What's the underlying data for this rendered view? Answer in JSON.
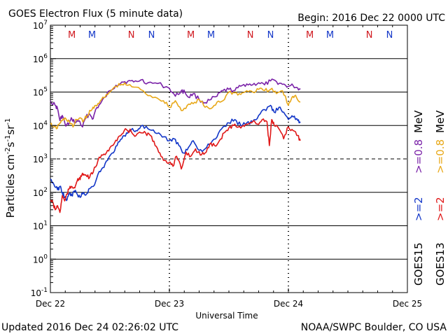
{
  "header": {
    "title": "GOES Electron Flux (5 minute data)",
    "begin": "Begin: 2016 Dec 22 0000 UTC"
  },
  "footer": {
    "updated": "Updated 2016 Dec 24 02:26:02 UTC",
    "credit": "NOAA/SWPC Boulder, CO USA"
  },
  "chart_data": {
    "type": "line",
    "title": "GOES Electron Flux (5 minute data)",
    "xlabel": "Universal Time",
    "ylabel": "Particles cm-2s-1sr-1",
    "ylabel_parts": {
      "base": "Particles cm",
      "e1": "-2",
      "m1": "s",
      "e2": "-1",
      "m2": "sr",
      "e3": "-1"
    },
    "yscale": "log",
    "ylim_exp": [
      -1,
      7
    ],
    "y_ticks": [
      {
        "exp": -1,
        "base": "10",
        "sup": "-1"
      },
      {
        "exp": 0,
        "base": "10",
        "sup": "0"
      },
      {
        "exp": 1,
        "base": "10",
        "sup": "1"
      },
      {
        "exp": 2,
        "base": "10",
        "sup": "2"
      },
      {
        "exp": 3,
        "base": "10",
        "sup": "3"
      },
      {
        "exp": 4,
        "base": "10",
        "sup": "4"
      },
      {
        "exp": 5,
        "base": "10",
        "sup": "5"
      },
      {
        "exp": 6,
        "base": "10",
        "sup": "6"
      },
      {
        "exp": 7,
        "base": "10",
        "sup": "7"
      }
    ],
    "dashed_threshold_exp": 3,
    "xlim_days": [
      0,
      3
    ],
    "x_ticks": [
      {
        "day": 0,
        "label": "Dec 22"
      },
      {
        "day": 1,
        "label": "Dec 23"
      },
      {
        "day": 2,
        "label": "Dec 24"
      },
      {
        "day": 3,
        "label": "Dec 25"
      }
    ],
    "markers": [
      {
        "day": 0.18,
        "label": "M",
        "color": "#d0181e"
      },
      {
        "day": 0.35,
        "label": "M",
        "color": "#1236c8"
      },
      {
        "day": 0.68,
        "label": "N",
        "color": "#d0181e"
      },
      {
        "day": 0.85,
        "label": "N",
        "color": "#1236c8"
      },
      {
        "day": 1.18,
        "label": "M",
        "color": "#d0181e"
      },
      {
        "day": 1.35,
        "label": "M",
        "color": "#1236c8"
      },
      {
        "day": 1.68,
        "label": "N",
        "color": "#d0181e"
      },
      {
        "day": 1.85,
        "label": "N",
        "color": "#1236c8"
      },
      {
        "day": 2.18,
        "label": "M",
        "color": "#d0181e"
      },
      {
        "day": 2.35,
        "label": "M",
        "color": "#1236c8"
      },
      {
        "day": 2.68,
        "label": "N",
        "color": "#d0181e"
      },
      {
        "day": 2.85,
        "label": "N",
        "color": "#1236c8"
      }
    ],
    "legend": {
      "goes15": "GOES15",
      "goes13": "GOES13",
      "ge2_goes15": ">=2",
      "ge2_goes13": ">=2",
      "ge08_goes15": ">=0.8",
      "ge08_goes13": ">=0.8",
      "mev": "MeV"
    },
    "series": [
      {
        "name": "GOES15 >=0.8 MeV",
        "color": "#7a22a8",
        "x": [
          0,
          0.04,
          0.06,
          0.08,
          0.1,
          0.13,
          0.16,
          0.18,
          0.21,
          0.24,
          0.27,
          0.3,
          0.33,
          0.36,
          0.38,
          0.42,
          0.46,
          0.5,
          0.55,
          0.6,
          0.65,
          0.7,
          0.76,
          0.82,
          0.9,
          1.0,
          1.05,
          1.1,
          1.13,
          1.16,
          1.2,
          1.25,
          1.3,
          1.35,
          1.4,
          1.45,
          1.5,
          1.55,
          1.6,
          1.65,
          1.7,
          1.75,
          1.8,
          1.85,
          1.9,
          1.95,
          2.0,
          2.04,
          2.08,
          2.1
        ],
        "y": [
          55000,
          40000,
          32000,
          14000,
          20000,
          9500,
          12000,
          16000,
          12000,
          14000,
          9000,
          18000,
          22000,
          16000,
          30000,
          45000,
          70000,
          110000,
          160000,
          200000,
          210000,
          200000,
          230000,
          190000,
          180000,
          130000,
          75000,
          110000,
          100000,
          70000,
          90000,
          60000,
          48000,
          60000,
          75000,
          110000,
          120000,
          110000,
          150000,
          175000,
          165000,
          190000,
          165000,
          215000,
          205000,
          170000,
          150000,
          155000,
          130000,
          120000
        ]
      },
      {
        "name": "GOES13 >=0.8 MeV",
        "color": "#e8a818",
        "x": [
          0,
          0.03,
          0.05,
          0.08,
          0.1,
          0.13,
          0.16,
          0.19,
          0.22,
          0.25,
          0.28,
          0.31,
          0.35,
          0.38,
          0.42,
          0.46,
          0.5,
          0.55,
          0.6,
          0.65,
          0.72,
          0.8,
          0.88,
          0.95,
          1.0,
          1.05,
          1.1,
          1.15,
          1.2,
          1.25,
          1.3,
          1.35,
          1.4,
          1.45,
          1.5,
          1.55,
          1.6,
          1.65,
          1.7,
          1.75,
          1.8,
          1.85,
          1.9,
          1.95,
          2.0,
          2.03,
          2.06,
          2.1
        ],
        "y": [
          11000,
          9000,
          8000,
          12000,
          14000,
          16000,
          13000,
          9000,
          15000,
          17000,
          14000,
          20000,
          30000,
          40000,
          55000,
          70000,
          100000,
          150000,
          170000,
          160000,
          140000,
          90000,
          70000,
          55000,
          35000,
          55000,
          28000,
          40000,
          45000,
          60000,
          35000,
          32000,
          50000,
          55000,
          100000,
          95000,
          85000,
          110000,
          100000,
          120000,
          110000,
          120000,
          90000,
          110000,
          40000,
          70000,
          80000,
          50000
        ]
      },
      {
        "name": "GOES15 >=2 MeV",
        "color": "#1236c8",
        "x": [
          0,
          0.03,
          0.06,
          0.08,
          0.1,
          0.12,
          0.14,
          0.16,
          0.18,
          0.2,
          0.22,
          0.25,
          0.28,
          0.3,
          0.33,
          0.36,
          0.4,
          0.44,
          0.48,
          0.52,
          0.56,
          0.6,
          0.64,
          0.68,
          0.72,
          0.76,
          0.82,
          0.88,
          0.94,
          1.0,
          1.04,
          1.08,
          1.12,
          1.16,
          1.2,
          1.25,
          1.3,
          1.35,
          1.4,
          1.45,
          1.5,
          1.55,
          1.6,
          1.65,
          1.7,
          1.75,
          1.8,
          1.85,
          1.88,
          1.92,
          1.96,
          2.0,
          2.04,
          2.08,
          2.1
        ],
        "y": [
          250,
          170,
          120,
          150,
          100,
          70,
          60,
          90,
          80,
          110,
          95,
          70,
          100,
          85,
          130,
          150,
          350,
          550,
          900,
          1500,
          2500,
          4000,
          6000,
          7500,
          7000,
          9500,
          8000,
          6000,
          4500,
          3500,
          4000,
          2500,
          1500,
          2200,
          3500,
          1800,
          2000,
          3000,
          4500,
          9000,
          12000,
          15000,
          10000,
          12000,
          13000,
          20000,
          30000,
          40000,
          25000,
          35000,
          25000,
          15000,
          18000,
          14000,
          12000
        ]
      },
      {
        "name": "GOES13 >=2 MeV",
        "color": "#e01818",
        "x": [
          0,
          0.02,
          0.04,
          0.06,
          0.08,
          0.1,
          0.12,
          0.14,
          0.16,
          0.18,
          0.2,
          0.22,
          0.24,
          0.26,
          0.28,
          0.3,
          0.33,
          0.36,
          0.4,
          0.44,
          0.48,
          0.52,
          0.56,
          0.6,
          0.64,
          0.68,
          0.72,
          0.76,
          0.8,
          0.84,
          0.88,
          0.92,
          0.96,
          1.0,
          1.03,
          1.06,
          1.1,
          1.14,
          1.18,
          1.22,
          1.26,
          1.3,
          1.34,
          1.38,
          1.42,
          1.46,
          1.5,
          1.54,
          1.58,
          1.62,
          1.66,
          1.7,
          1.74,
          1.78,
          1.82,
          1.84,
          1.86,
          1.88,
          1.92,
          1.96,
          2.0,
          2.04,
          2.08,
          2.1
        ],
        "y": [
          60,
          50,
          30,
          40,
          25,
          80,
          55,
          90,
          130,
          150,
          140,
          200,
          250,
          300,
          350,
          320,
          280,
          400,
          900,
          1300,
          1800,
          2500,
          3500,
          5500,
          7500,
          6500,
          5000,
          6000,
          6000,
          5000,
          2500,
          1500,
          900,
          800,
          600,
          1200,
          500,
          1600,
          1200,
          2000,
          1300,
          1500,
          2800,
          2500,
          3500,
          6000,
          8500,
          10000,
          9000,
          10000,
          11000,
          13000,
          11000,
          15000,
          13000,
          2500,
          15000,
          10000,
          8000,
          4000,
          9000,
          7000,
          5000,
          3500
        ]
      }
    ]
  }
}
